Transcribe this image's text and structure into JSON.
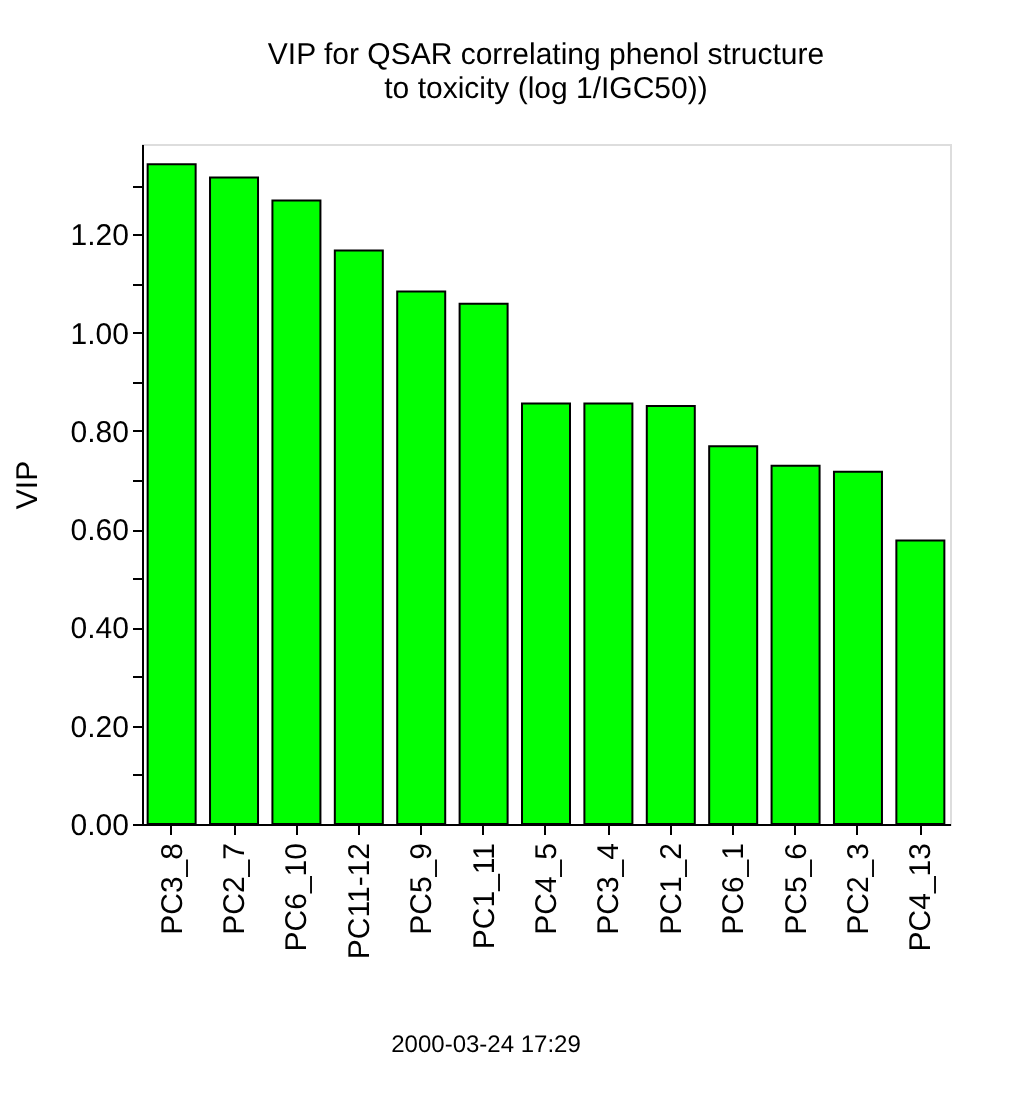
{
  "chart_data": {
    "type": "bar",
    "title": [
      "VIP for QSAR correlating phenol structure",
      "to toxicity  (log 1/IGC50))"
    ],
    "ylabel": "VIP",
    "categories": [
      "PC3_8",
      "PC2_7",
      "PC6_10",
      "PC11-12",
      "PC5_9",
      "PC1_11",
      "PC4_5",
      "PC3_4",
      "PC1_2",
      "PC6_1",
      "PC5_6",
      "PC2_3",
      "PC4_13"
    ],
    "values": [
      1.343,
      1.316,
      1.269,
      1.167,
      1.084,
      1.059,
      0.856,
      0.856,
      0.851,
      0.769,
      0.729,
      0.717,
      0.577
    ],
    "color": "#00ff00",
    "ylim": [
      0,
      1.384
    ],
    "yticks": [
      {
        "value": 0,
        "label": "0.00"
      },
      {
        "value": 0.1,
        "label": null
      },
      {
        "value": 0.2,
        "label": "0.20"
      },
      {
        "value": 0.3,
        "label": null
      },
      {
        "value": 0.4,
        "label": "0.40"
      },
      {
        "value": 0.5,
        "label": null
      },
      {
        "value": 0.6,
        "label": "0.60"
      },
      {
        "value": 0.7,
        "label": null
      },
      {
        "value": 0.8,
        "label": "0.80"
      },
      {
        "value": 0.9,
        "label": null
      },
      {
        "value": 1.0,
        "label": "1.00"
      },
      {
        "value": 1.1,
        "label": null
      },
      {
        "value": 1.2,
        "label": "1.20"
      },
      {
        "value": 1.3,
        "label": null
      }
    ],
    "grid": false,
    "annotations": [
      "2000-03-24 17:29"
    ]
  }
}
